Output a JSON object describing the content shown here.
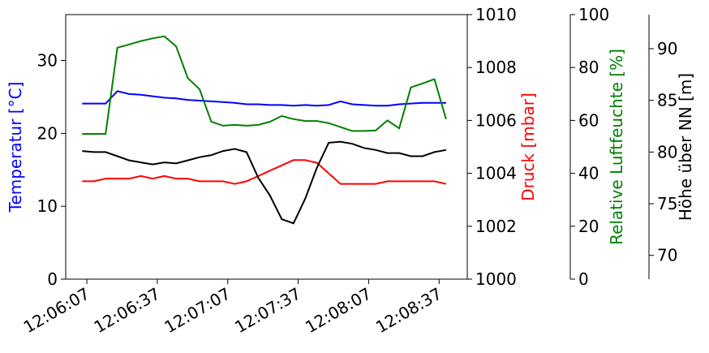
{
  "chart_data": {
    "type": "line",
    "x": [
      "12:06:05",
      "12:06:10",
      "12:06:15",
      "12:06:20",
      "12:06:25",
      "12:06:30",
      "12:06:35",
      "12:06:40",
      "12:06:45",
      "12:06:50",
      "12:06:55",
      "12:07:00",
      "12:07:05",
      "12:07:10",
      "12:07:15",
      "12:07:20",
      "12:07:25",
      "12:07:30",
      "12:07:35",
      "12:07:40",
      "12:07:45",
      "12:07:50",
      "12:07:55",
      "12:08:00",
      "12:08:05",
      "12:08:10",
      "12:08:15",
      "12:08:20",
      "12:08:25",
      "12:08:30",
      "12:08:35",
      "12:08:40"
    ],
    "xlim": [
      "12:05:58",
      "12:08:49"
    ],
    "xticks": [
      "12:06:07",
      "12:06:37",
      "12:07:07",
      "12:07:37",
      "12:08:07",
      "12:08:37"
    ],
    "axes": [
      {
        "label": "Temperatur [°C]",
        "color": "#0000ff",
        "ylim": [
          0,
          36.3
        ],
        "yticks": [
          0,
          10,
          20,
          30
        ]
      },
      {
        "label": "Druck [mbar]",
        "color": "#ff0000",
        "ylim": [
          1000,
          1010
        ],
        "yticks": [
          1000,
          1002,
          1004,
          1006,
          1008,
          1010
        ]
      },
      {
        "label": "Relative Luftfeuchte [%]",
        "color": "#008000",
        "ylim": [
          0,
          100
        ],
        "yticks": [
          0,
          20,
          40,
          60,
          80,
          100
        ]
      },
      {
        "label": "Höhe über NN [m]",
        "color": "#000000",
        "ylim": [
          67.7,
          93.3
        ],
        "yticks": [
          70,
          75,
          80,
          85,
          90
        ]
      }
    ],
    "series": [
      {
        "axis": 0,
        "color": "#0000ff",
        "values": [
          24.1,
          24.1,
          24.1,
          25.8,
          25.4,
          25.3,
          25.1,
          24.9,
          24.8,
          24.6,
          24.5,
          24.4,
          24.3,
          24.2,
          24.0,
          24.0,
          23.9,
          23.9,
          23.8,
          23.9,
          23.8,
          23.9,
          24.4,
          24.0,
          23.9,
          23.8,
          23.8,
          24.0,
          24.1,
          24.2,
          24.2,
          24.2
        ]
      },
      {
        "axis": 1,
        "color": "#ff0000",
        "values": [
          1003.7,
          1003.7,
          1003.8,
          1003.8,
          1003.8,
          1003.9,
          1003.8,
          1003.9,
          1003.8,
          1003.8,
          1003.7,
          1003.7,
          1003.7,
          1003.6,
          1003.7,
          1003.9,
          1004.1,
          1004.3,
          1004.5,
          1004.5,
          1004.4,
          1004.0,
          1003.6,
          1003.6,
          1003.6,
          1003.6,
          1003.7,
          1003.7,
          1003.7,
          1003.7,
          1003.7,
          1003.6
        ]
      },
      {
        "axis": 2,
        "color": "#008000",
        "values": [
          54.9,
          54.9,
          54.9,
          87.5,
          88.7,
          90,
          91,
          91.8,
          88,
          76,
          71.8,
          59.5,
          58,
          58.3,
          58,
          58.3,
          59.5,
          61.7,
          60.5,
          59.8,
          59.8,
          59.0,
          57.5,
          56.0,
          56.0,
          56.2,
          60,
          57,
          72.5,
          74,
          75.6,
          60.5
        ]
      },
      {
        "axis": 3,
        "color": "#000000",
        "values": [
          80.1,
          80.0,
          80.0,
          79.6,
          79.2,
          79.0,
          78.8,
          79.0,
          78.9,
          79.2,
          79.5,
          79.7,
          80.1,
          80.3,
          80.0,
          77.5,
          75.8,
          73.5,
          73.1,
          75.5,
          78.5,
          80.9,
          81.0,
          80.8,
          80.4,
          80.2,
          79.9,
          79.9,
          79.6,
          79.6,
          80.0,
          80.2
        ]
      }
    ]
  }
}
